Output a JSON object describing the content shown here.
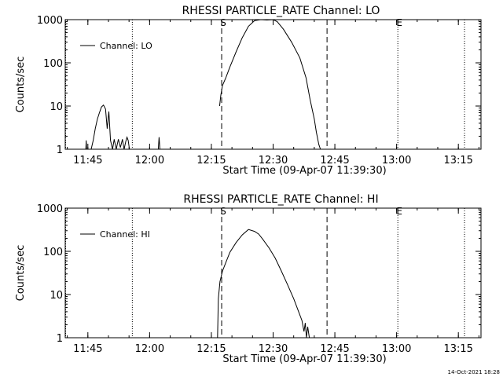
{
  "chart_data": [
    {
      "type": "line",
      "title": "RHESSI PARTICLE_RATE Channel: LO",
      "xlabel": "Start Time (09-Apr-07 11:39:30)",
      "ylabel": "Counts/sec",
      "y_scale": "log",
      "ylim": [
        1,
        1000
      ],
      "xlim_minutes": [
        0,
        101
      ],
      "x_ticks": [
        {
          "label": "11:45",
          "min": 5.5
        },
        {
          "label": "12:00",
          "min": 20.5
        },
        {
          "label": "12:15",
          "min": 35.5
        },
        {
          "label": "12:30",
          "min": 50.5
        },
        {
          "label": "12:45",
          "min": 65.5
        },
        {
          "label": "13:00",
          "min": 80.5
        },
        {
          "label": "13:15",
          "min": 95.5
        }
      ],
      "y_ticks": [
        {
          "label": "1",
          "value": 1
        },
        {
          "label": "10",
          "value": 10
        },
        {
          "label": "100",
          "value": 100
        },
        {
          "label": "1000",
          "value": 1000
        }
      ],
      "legend": "Channel: LO",
      "legend_position": "top-left",
      "markers": [
        {
          "min": 0.1,
          "style": "dotted",
          "label": ""
        },
        {
          "min": 16.3,
          "style": "dotted",
          "label": ""
        },
        {
          "min": 38.0,
          "style": "dashed",
          "label": "S"
        },
        {
          "min": 63.6,
          "style": "dashed",
          "label": ""
        },
        {
          "min": 80.8,
          "style": "dotted",
          "label": "E"
        },
        {
          "min": 97.0,
          "style": "dotted",
          "label": ""
        }
      ],
      "series": [
        {
          "name": "LO",
          "segments": [
            {
              "x": [
                5.0,
                5.1,
                5.2
              ],
              "y": [
                1,
                1.6,
                1
              ]
            },
            {
              "x": [
                6.3,
                6.8,
                7.3,
                7.8,
                8.3,
                8.8,
                9.3,
                9.8,
                10.2,
                10.6,
                11.0,
                11.5,
                11.9,
                12.4,
                12.9,
                13.4,
                13.9,
                14.3,
                14.7,
                15.0,
                15.3,
                15.6
              ],
              "y": [
                1,
                1.6,
                3.0,
                5.0,
                7.0,
                9.5,
                10.5,
                8.5,
                3.0,
                7.5,
                1.6,
                1,
                1.7,
                1,
                1.7,
                1.1,
                1.7,
                1,
                1.5,
                1.9,
                1.6,
                1
              ]
            },
            {
              "x": [
                22.6,
                22.8,
                23.0
              ],
              "y": [
                1,
                1.9,
                1
              ]
            },
            {
              "x": [
                37.5,
                37.8,
                38.2,
                39.0,
                40.0,
                41.5,
                43.0,
                44.5,
                46.0,
                47.5,
                49.0,
                50.5,
                51.5,
                53.0,
                55.0,
                57.0,
                58.5,
                59.5,
                60.5,
                61.0,
                61.6,
                62.0
              ],
              "y": [
                10,
                18,
                30,
                45,
                80,
                180,
                380,
                700,
                950,
                1000,
                980,
                1000,
                900,
                600,
                300,
                130,
                45,
                14,
                5,
                2.5,
                1.3,
                1
              ]
            }
          ]
        }
      ]
    },
    {
      "type": "line",
      "title": "RHESSI PARTICLE_RATE Channel: HI",
      "xlabel": "Start Time (09-Apr-07 11:39:30)",
      "ylabel": "Counts/sec",
      "y_scale": "log",
      "ylim": [
        1,
        1000
      ],
      "xlim_minutes": [
        0,
        101
      ],
      "x_ticks": [
        {
          "label": "11:45",
          "min": 5.5
        },
        {
          "label": "12:00",
          "min": 20.5
        },
        {
          "label": "12:15",
          "min": 35.5
        },
        {
          "label": "12:30",
          "min": 50.5
        },
        {
          "label": "12:45",
          "min": 65.5
        },
        {
          "label": "13:00",
          "min": 80.5
        },
        {
          "label": "13:15",
          "min": 95.5
        }
      ],
      "y_ticks": [
        {
          "label": "1",
          "value": 1
        },
        {
          "label": "10",
          "value": 10
        },
        {
          "label": "100",
          "value": 100
        },
        {
          "label": "1000",
          "value": 1000
        }
      ],
      "legend": "Channel: HI",
      "legend_position": "top-left",
      "markers": [
        {
          "min": 0.1,
          "style": "dotted",
          "label": ""
        },
        {
          "min": 16.3,
          "style": "dotted",
          "label": ""
        },
        {
          "min": 38.0,
          "style": "dashed",
          "label": "S"
        },
        {
          "min": 63.6,
          "style": "dashed",
          "label": ""
        },
        {
          "min": 80.8,
          "style": "dotted",
          "label": "E"
        },
        {
          "min": 97.0,
          "style": "dotted",
          "label": ""
        }
      ],
      "series": [
        {
          "name": "HI",
          "segments": [
            {
              "x": [
                37.0,
                37.2,
                37.6,
                38.2,
                39.0,
                40.0,
                41.5,
                43.0,
                44.5,
                46.0,
                47.0,
                48.0,
                49.5,
                51.0,
                52.5,
                54.0,
                55.5,
                56.5,
                57.5,
                58.0,
                58.3,
                58.6,
                58.9,
                59.3
              ],
              "y": [
                1,
                8,
                20,
                35,
                55,
                95,
                160,
                240,
                320,
                290,
                250,
                190,
                120,
                70,
                35,
                17,
                8,
                4.5,
                2.5,
                1.4,
                2.2,
                1,
                1.8,
                1
              ]
            }
          ]
        }
      ]
    }
  ],
  "timestamp": "14-Oct-2021 18:28"
}
